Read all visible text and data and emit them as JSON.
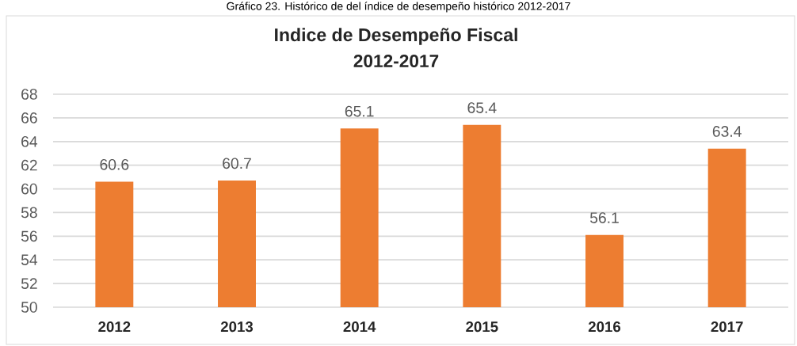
{
  "chart_data": {
    "type": "bar",
    "title": "Indice de Desempeño Fiscal",
    "subtitle": "2012-2017",
    "annotations": [
      "Gráfico 23. Histórico de del índice de desempeño histórico 2012-2017"
    ],
    "categories": [
      "2012",
      "2013",
      "2014",
      "2015",
      "2016",
      "2017"
    ],
    "values": [
      60.6,
      60.7,
      65.1,
      65.4,
      56.1,
      63.4
    ],
    "color": "#ED7D31",
    "ylim": [
      50,
      68
    ],
    "yticks": [
      50,
      52,
      54,
      56,
      58,
      60,
      62,
      64,
      66,
      68
    ],
    "grid": "y",
    "data_labels": true
  }
}
